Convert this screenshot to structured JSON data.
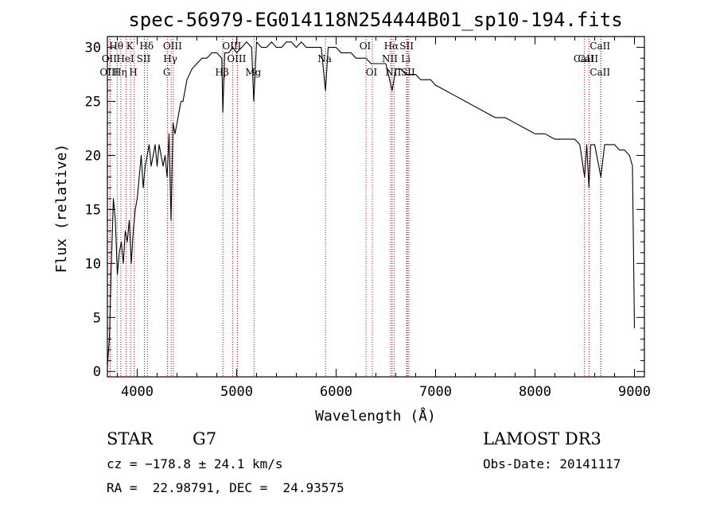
{
  "chart_data": {
    "type": "line",
    "title": "spec-56979-EG014118N254444B01_sp10-194.fits",
    "xlabel": "Wavelength (Å)",
    "ylabel": "Flux (relative)",
    "xlim": [
      3700,
      9100
    ],
    "ylim": [
      -0.5,
      31
    ],
    "x_ticks": [
      4000,
      5000,
      6000,
      7000,
      8000,
      9000
    ],
    "y_ticks": [
      0,
      5,
      10,
      15,
      20,
      25,
      30
    ],
    "series": [
      {
        "name": "flux",
        "x": [
          3700,
          3720,
          3740,
          3760,
          3780,
          3800,
          3820,
          3840,
          3860,
          3880,
          3900,
          3920,
          3940,
          3960,
          3980,
          4000,
          4020,
          4040,
          4060,
          4080,
          4100,
          4120,
          4140,
          4160,
          4180,
          4200,
          4220,
          4240,
          4260,
          4280,
          4300,
          4320,
          4340,
          4360,
          4380,
          4400,
          4420,
          4440,
          4460,
          4480,
          4500,
          4550,
          4600,
          4650,
          4700,
          4750,
          4800,
          4850,
          4861,
          4880,
          4920,
          4960,
          5000,
          5050,
          5100,
          5150,
          5172,
          5200,
          5250,
          5300,
          5350,
          5400,
          5450,
          5500,
          5550,
          5600,
          5650,
          5700,
          5750,
          5800,
          5850,
          5893,
          5920,
          5960,
          6000,
          6050,
          6100,
          6150,
          6200,
          6250,
          6300,
          6350,
          6400,
          6450,
          6500,
          6563,
          6600,
          6650,
          6700,
          6750,
          6800,
          6850,
          6900,
          6950,
          7000,
          7100,
          7200,
          7300,
          7400,
          7500,
          7600,
          7700,
          7800,
          7900,
          8000,
          8100,
          8200,
          8300,
          8400,
          8450,
          8498,
          8520,
          8542,
          8560,
          8600,
          8662,
          8700,
          8750,
          8800,
          8850,
          8900,
          8950,
          8980,
          9000
        ],
        "y": [
          0.5,
          3,
          10,
          16,
          14,
          9,
          11,
          12,
          10,
          13,
          12,
          14,
          10,
          13,
          15,
          16,
          18,
          20,
          17,
          19,
          20,
          21,
          19,
          20,
          21,
          19,
          21,
          20,
          19,
          20,
          18,
          22,
          14,
          23,
          22,
          23,
          24,
          25,
          25,
          26,
          27,
          28,
          28.5,
          29,
          29,
          29.5,
          29.5,
          29,
          24,
          29.5,
          29.5,
          30,
          29.5,
          30,
          30.5,
          30,
          25,
          30.5,
          30,
          30,
          30.5,
          30,
          30,
          30.5,
          30.5,
          30,
          30.5,
          30,
          30,
          30,
          30,
          26,
          30,
          30,
          30,
          29.5,
          29.5,
          29.5,
          29,
          29,
          29,
          28.5,
          28.5,
          28.5,
          28.5,
          26,
          28,
          28,
          27.5,
          27.5,
          27.5,
          27,
          27,
          27,
          26.5,
          26,
          25.5,
          25,
          24.5,
          24,
          23.5,
          23.5,
          23,
          22.5,
          22,
          22,
          21.5,
          21.5,
          21.5,
          21,
          18,
          21,
          17,
          21,
          21,
          18,
          21,
          21,
          21,
          20.5,
          20.5,
          20,
          19,
          4
        ]
      }
    ],
    "lines": [
      {
        "label": "Hθ",
        "wl": 3798,
        "row": 0
      },
      {
        "label": "OII",
        "wl": 3727,
        "row": 1
      },
      {
        "label": "OIII",
        "wl": 3727,
        "row": 2
      },
      {
        "label": "Hη",
        "wl": 3835,
        "row": 2
      },
      {
        "label": "HeI",
        "wl": 3889,
        "row": 1
      },
      {
        "label": "K",
        "wl": 3934,
        "row": 0
      },
      {
        "label": "H",
        "wl": 3969,
        "row": 2
      },
      {
        "label": "SII",
        "wl": 4072,
        "row": 1
      },
      {
        "label": "Hδ",
        "wl": 4102,
        "row": 0
      },
      {
        "label": "OIII",
        "wl": 4363,
        "row": 0
      },
      {
        "label": "Hγ",
        "wl": 4341,
        "row": 1
      },
      {
        "label": "G",
        "wl": 4305,
        "row": 2
      },
      {
        "label": "Hβ",
        "wl": 4861,
        "row": 2
      },
      {
        "label": "OIII",
        "wl": 4959,
        "row": 0
      },
      {
        "label": "OIII",
        "wl": 5007,
        "row": 1
      },
      {
        "label": "Mg",
        "wl": 5175,
        "row": 2
      },
      {
        "label": "Na",
        "wl": 5893,
        "row": 1
      },
      {
        "label": "OI",
        "wl": 6300,
        "row": 0
      },
      {
        "label": "OI",
        "wl": 6364,
        "row": 2
      },
      {
        "label": "Hα",
        "wl": 6563,
        "row": 0
      },
      {
        "label": "NII",
        "wl": 6548,
        "row": 1
      },
      {
        "label": "NII",
        "wl": 6583,
        "row": 2
      },
      {
        "label": "SII",
        "wl": 6717,
        "row": 0
      },
      {
        "label": "Li",
        "wl": 6708,
        "row": 1
      },
      {
        "label": "SII",
        "wl": 6731,
        "row": 2
      },
      {
        "label": "CaII",
        "wl": 8662,
        "row": 0
      },
      {
        "label": "CaII",
        "wl": 8542,
        "row": 1
      },
      {
        "label": "CaII",
        "wl": 8662,
        "row": 2
      },
      {
        "label": "CaII",
        "wl": 8498,
        "row": 3
      }
    ]
  },
  "info": {
    "object_class": "STAR",
    "subclass": "G7",
    "survey": "LAMOST DR3",
    "redshift": "cz = −178.8 ± 24.1 km/s",
    "obs_date": "Obs-Date: 20141117",
    "coords": "RA =  22.98791, DEC =  24.93575"
  }
}
